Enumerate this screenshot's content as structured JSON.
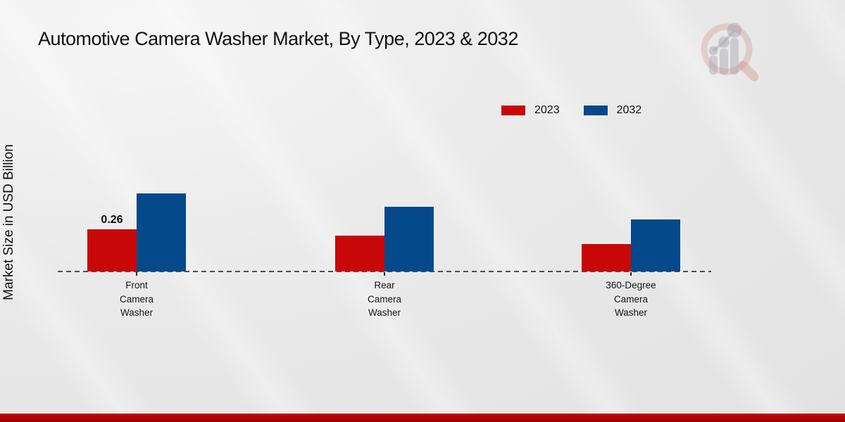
{
  "chart_data": {
    "type": "bar",
    "title": "Automotive Camera Washer Market, By Type, 2023 & 2032",
    "ylabel": "Market Size in USD Billion",
    "xlabel": "",
    "categories": [
      "Front Camera Washer",
      "Rear Camera Washer",
      "360-Degree Camera Washer"
    ],
    "category_label_lines": [
      "Front\nCamera\nWasher",
      "Rear\nCamera\nWasher",
      "360-Degree\nCamera\nWasher"
    ],
    "series": [
      {
        "name": "2023",
        "color": "#c80808",
        "values": [
          0.26,
          0.22,
          0.17
        ]
      },
      {
        "name": "2032",
        "color": "#04498a",
        "values": [
          0.48,
          0.4,
          0.32
        ]
      }
    ],
    "annotations": [
      {
        "text": "0.26",
        "series": "2023",
        "category": "Front Camera Washer"
      }
    ],
    "legend_position": "top-right",
    "grid": false,
    "axis_style": "dashed-baseline-only",
    "ylim": [
      0,
      0.55
    ]
  },
  "watermark": {
    "name": "market-research-future-logo"
  },
  "footer": {
    "bar_color": "#ae0404"
  },
  "colors": {
    "background": "#eaeaea",
    "axis": "#1a1a1a"
  }
}
